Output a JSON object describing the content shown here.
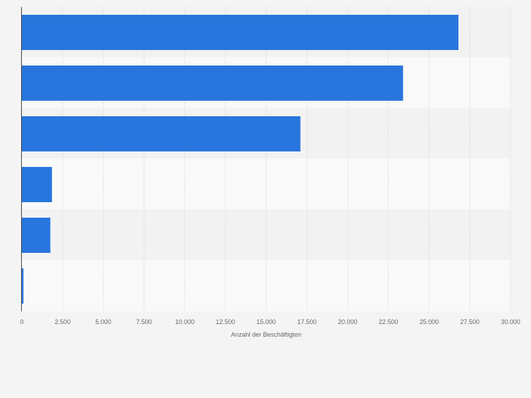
{
  "colors": {
    "background": "#f4f4f4",
    "band_light": "#f9f9f9",
    "band_dark": "#f2f2f2",
    "bar": "#2876dd",
    "gridline": "#d9d9d9",
    "axis_line": "#444444",
    "tick_text": "#666666"
  },
  "chart_data": {
    "type": "bar",
    "orientation": "horizontal",
    "categories": [
      "",
      "",
      "",
      "",
      "",
      ""
    ],
    "values": [
      26800,
      23400,
      17100,
      1850,
      1750,
      100
    ],
    "xlabel": "Anzahl der Beschäftigten",
    "ylabel": "",
    "xlim": [
      0,
      30000
    ],
    "x_ticks": [
      0,
      2500,
      5000,
      7500,
      10000,
      12500,
      15000,
      17500,
      20000,
      22500,
      25000,
      27500,
      30000
    ],
    "x_tick_labels": [
      "0",
      "2.500",
      "5.000",
      "7.500",
      "10.000",
      "12.500",
      "15.000",
      "17.500",
      "20.000",
      "22.500",
      "25.000",
      "27.500",
      "30.000"
    ],
    "grid": true,
    "legend": "none"
  }
}
